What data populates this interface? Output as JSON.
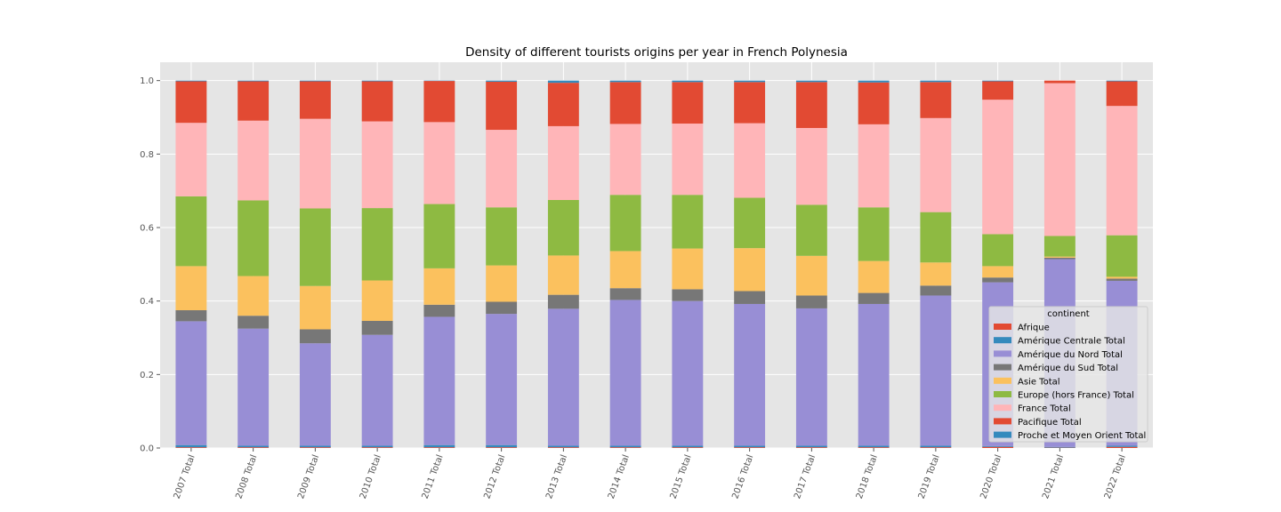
{
  "chart_data": {
    "type": "bar",
    "stacked": true,
    "title": "Density of different tourists origins per year in French Polynesia",
    "xlabel": "",
    "ylabel": "",
    "ylim": [
      0,
      1.05
    ],
    "yticks": [
      "0.0",
      "0.2",
      "0.4",
      "0.6",
      "0.8",
      "1.0"
    ],
    "grid": true,
    "legend_title": "continent",
    "legend_position": "lower-right",
    "categories": [
      "2007 Total",
      "2008 Total",
      "2009 Total",
      "2010 Total",
      "2011 Total",
      "2012 Total",
      "2013 Total",
      "2014 Total",
      "2015 Total",
      "2016 Total",
      "2017 Total",
      "2018 Total",
      "2019 Total",
      "2020 Total",
      "2021 Total",
      "2022 Total"
    ],
    "series": [
      {
        "name": "Afrique",
        "color": "#E24A33",
        "values": [
          0.002,
          0.002,
          0.002,
          0.002,
          0.002,
          0.002,
          0.002,
          0.002,
          0.002,
          0.002,
          0.002,
          0.002,
          0.002,
          0.003,
          0.001,
          0.003
        ]
      },
      {
        "name": "Amérique Centrale Total",
        "color": "#348ABD",
        "values": [
          0.006,
          0.004,
          0.004,
          0.004,
          0.006,
          0.006,
          0.004,
          0.004,
          0.004,
          0.004,
          0.004,
          0.004,
          0.004,
          0.002,
          0.002,
          0.003
        ]
      },
      {
        "name": "Amérique du Nord Total",
        "color": "#988ED5",
        "values": [
          0.337,
          0.319,
          0.279,
          0.302,
          0.349,
          0.357,
          0.373,
          0.397,
          0.394,
          0.386,
          0.374,
          0.386,
          0.409,
          0.446,
          0.511,
          0.449
        ]
      },
      {
        "name": "Amérique du Sud Total",
        "color": "#777777",
        "values": [
          0.03,
          0.035,
          0.038,
          0.038,
          0.033,
          0.033,
          0.038,
          0.032,
          0.032,
          0.035,
          0.035,
          0.03,
          0.027,
          0.013,
          0.004,
          0.006
        ]
      },
      {
        "name": "Asie Total",
        "color": "#FBC15E",
        "values": [
          0.12,
          0.108,
          0.118,
          0.11,
          0.099,
          0.099,
          0.107,
          0.101,
          0.111,
          0.117,
          0.108,
          0.087,
          0.063,
          0.031,
          0.003,
          0.005
        ]
      },
      {
        "name": "Europe (hors France) Total",
        "color": "#8EBA42",
        "values": [
          0.19,
          0.206,
          0.211,
          0.197,
          0.175,
          0.158,
          0.151,
          0.153,
          0.146,
          0.137,
          0.139,
          0.146,
          0.137,
          0.087,
          0.056,
          0.113
        ]
      },
      {
        "name": "France Total",
        "color": "#FFB5B8",
        "values": [
          0.2,
          0.217,
          0.244,
          0.236,
          0.223,
          0.211,
          0.201,
          0.193,
          0.194,
          0.203,
          0.209,
          0.226,
          0.256,
          0.366,
          0.416,
          0.352
        ]
      },
      {
        "name": "Pacifique Total",
        "color": "#E24A33",
        "values": [
          0.113,
          0.107,
          0.102,
          0.109,
          0.112,
          0.131,
          0.118,
          0.114,
          0.113,
          0.112,
          0.125,
          0.114,
          0.098,
          0.05,
          0.007,
          0.067
        ]
      },
      {
        "name": "Proche et Moyen Orient Total",
        "color": "#348ABD",
        "values": [
          0.002,
          0.002,
          0.002,
          0.002,
          0.001,
          0.003,
          0.006,
          0.004,
          0.004,
          0.004,
          0.004,
          0.005,
          0.004,
          0.002,
          0.0,
          0.002
        ]
      }
    ]
  }
}
